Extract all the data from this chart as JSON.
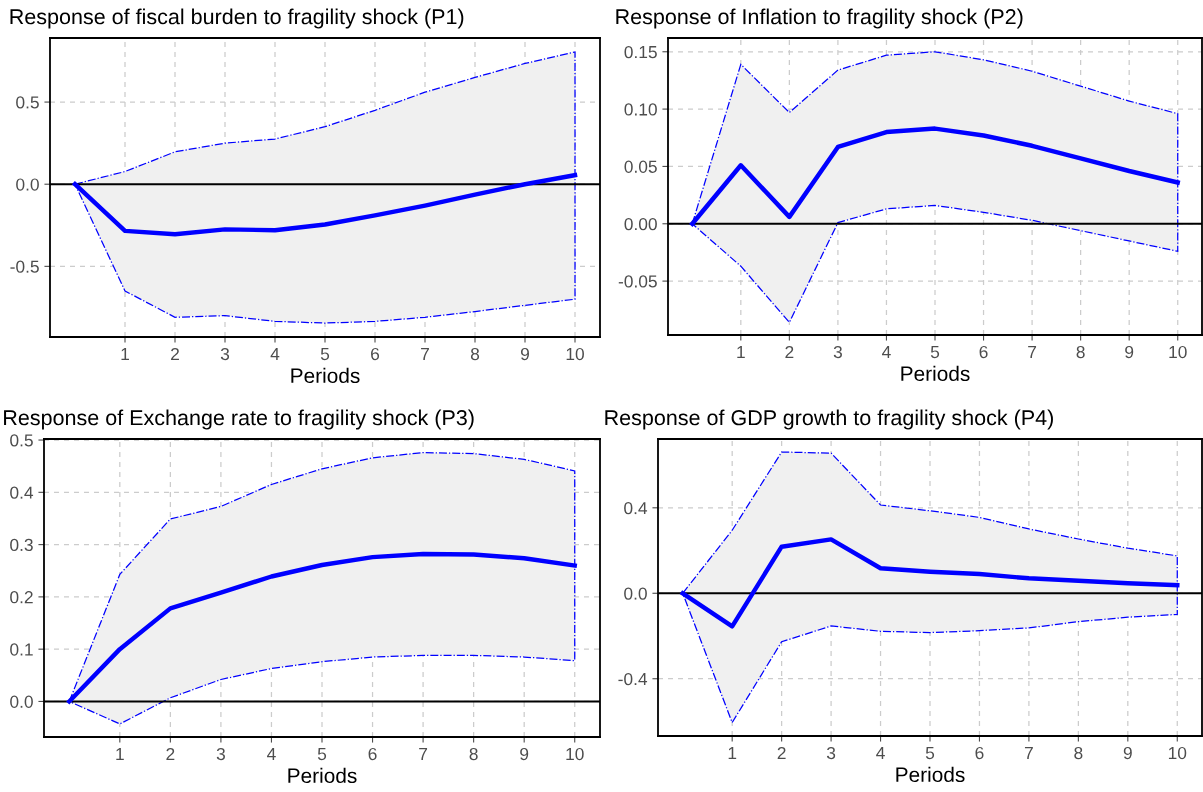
{
  "chart_data": [
    {
      "type": "line",
      "title": "Response of fiscal burden to fragility shock (P1)",
      "xlabel": "Periods",
      "x": [
        0,
        1,
        2,
        3,
        4,
        5,
        6,
        7,
        8,
        9,
        10
      ],
      "xlim": [
        -0.5,
        10.5
      ],
      "xticks": [
        1,
        2,
        3,
        4,
        5,
        6,
        7,
        8,
        9,
        10
      ],
      "ylim": [
        -0.93,
        0.89
      ],
      "yticks": [
        {
          "value": -0.5,
          "label": "-0.5"
        },
        {
          "value": 0,
          "label": "0.0"
        },
        {
          "value": 0.5,
          "label": "0.5"
        }
      ],
      "grid": true,
      "line_style": "solid",
      "marker": "none",
      "series": [
        {
          "color": "#0000ff",
          "values": [
            0,
            -0.284,
            -0.305,
            -0.275,
            -0.28,
            -0.245,
            -0.19,
            -0.13,
            -0.063,
            0,
            0.055
          ],
          "lower": [
            0,
            -0.65,
            -0.81,
            -0.8,
            -0.835,
            -0.845,
            -0.835,
            -0.81,
            -0.775,
            -0.737,
            -0.7
          ],
          "upper": [
            0,
            0.077,
            0.197,
            0.25,
            0.275,
            0.35,
            0.45,
            0.56,
            0.65,
            0.735,
            0.805
          ]
        }
      ],
      "ref_lines": [
        {
          "axis": "y",
          "value": 0,
          "color": "#000000"
        }
      ]
    },
    {
      "type": "line",
      "title": "Response of Inflation to fragility shock (P2)",
      "xlabel": "Periods",
      "x": [
        0,
        1,
        2,
        3,
        4,
        5,
        6,
        7,
        8,
        9,
        10
      ],
      "xlim": [
        -0.5,
        10.5
      ],
      "xticks": [
        1,
        2,
        3,
        4,
        5,
        6,
        7,
        8,
        9,
        10
      ],
      "ylim": [
        -0.097,
        0.162
      ],
      "yticks": [
        {
          "value": -0.05,
          "label": "-0.05"
        },
        {
          "value": 0,
          "label": "0.00"
        },
        {
          "value": 0.05,
          "label": "0.05"
        },
        {
          "value": 0.1,
          "label": "0.10"
        },
        {
          "value": 0.15,
          "label": "0.15"
        }
      ],
      "grid": true,
      "line_style": "solid",
      "marker": "none",
      "series": [
        {
          "color": "#0000ff",
          "values": [
            0,
            0.051,
            0.006,
            0.067,
            0.08,
            0.083,
            0.077,
            0.068,
            0.057,
            0.046,
            0.036
          ],
          "lower": [
            0,
            -0.037,
            -0.086,
            0.001,
            0.013,
            0.016,
            0.01,
            0.003,
            -0.006,
            -0.015,
            -0.024
          ],
          "upper": [
            0,
            0.139,
            0.097,
            0.134,
            0.147,
            0.15,
            0.143,
            0.133,
            0.12,
            0.107,
            0.096
          ]
        }
      ],
      "ref_lines": [
        {
          "axis": "y",
          "value": 0,
          "color": "#000000"
        }
      ]
    },
    {
      "type": "line",
      "title": "Response of Exchange rate to fragility shock (P3)",
      "xlabel": "Periods",
      "x": [
        0,
        1,
        2,
        3,
        4,
        5,
        6,
        7,
        8,
        9,
        10
      ],
      "xlim": [
        -0.5,
        10.5
      ],
      "xticks": [
        1,
        2,
        3,
        4,
        5,
        6,
        7,
        8,
        9,
        10
      ],
      "ylim": [
        -0.068,
        0.502
      ],
      "yticks": [
        {
          "value": 0,
          "label": "0.0"
        },
        {
          "value": 0.1,
          "label": "0.1"
        },
        {
          "value": 0.2,
          "label": "0.2"
        },
        {
          "value": 0.3,
          "label": "0.3"
        },
        {
          "value": 0.4,
          "label": "0.4"
        },
        {
          "value": 0.5,
          "label": "0.5"
        }
      ],
      "grid": true,
      "line_style": "solid",
      "marker": "none",
      "series": [
        {
          "color": "#0000ff",
          "values": [
            0,
            0.1,
            0.178,
            0.208,
            0.239,
            0.261,
            0.276,
            0.282,
            0.281,
            0.274,
            0.26
          ],
          "lower": [
            0,
            -0.043,
            0.007,
            0.042,
            0.063,
            0.076,
            0.085,
            0.088,
            0.088,
            0.085,
            0.078
          ],
          "upper": [
            0,
            0.243,
            0.349,
            0.373,
            0.415,
            0.445,
            0.466,
            0.476,
            0.474,
            0.463,
            0.441
          ]
        }
      ],
      "ref_lines": [
        {
          "axis": "y",
          "value": 0,
          "color": "#000000"
        }
      ]
    },
    {
      "type": "line",
      "title": "Response of GDP growth to fragility shock (P4)",
      "xlabel": "Periods",
      "x": [
        0,
        1,
        2,
        3,
        4,
        5,
        6,
        7,
        8,
        9,
        10
      ],
      "xlim": [
        -0.5,
        10.5
      ],
      "xticks": [
        1,
        2,
        3,
        4,
        5,
        6,
        7,
        8,
        9,
        10
      ],
      "ylim": [
        -0.668,
        0.722
      ],
      "yticks": [
        {
          "value": -0.4,
          "label": "-0.4"
        },
        {
          "value": 0,
          "label": "0.0"
        },
        {
          "value": 0.4,
          "label": "0.4"
        }
      ],
      "grid": true,
      "line_style": "solid",
      "marker": "none",
      "series": [
        {
          "color": "#0000ff",
          "values": [
            0,
            -0.155,
            0.218,
            0.252,
            0.117,
            0.101,
            0.09,
            0.07,
            0.059,
            0.047,
            0.038
          ],
          "lower": [
            0,
            -0.605,
            -0.227,
            -0.153,
            -0.178,
            -0.184,
            -0.175,
            -0.162,
            -0.133,
            -0.112,
            -0.099
          ],
          "upper": [
            0,
            0.295,
            0.661,
            0.656,
            0.413,
            0.386,
            0.355,
            0.301,
            0.254,
            0.211,
            0.175
          ]
        }
      ],
      "ref_lines": [
        {
          "axis": "y",
          "value": 0,
          "color": "#000000"
        }
      ]
    }
  ]
}
